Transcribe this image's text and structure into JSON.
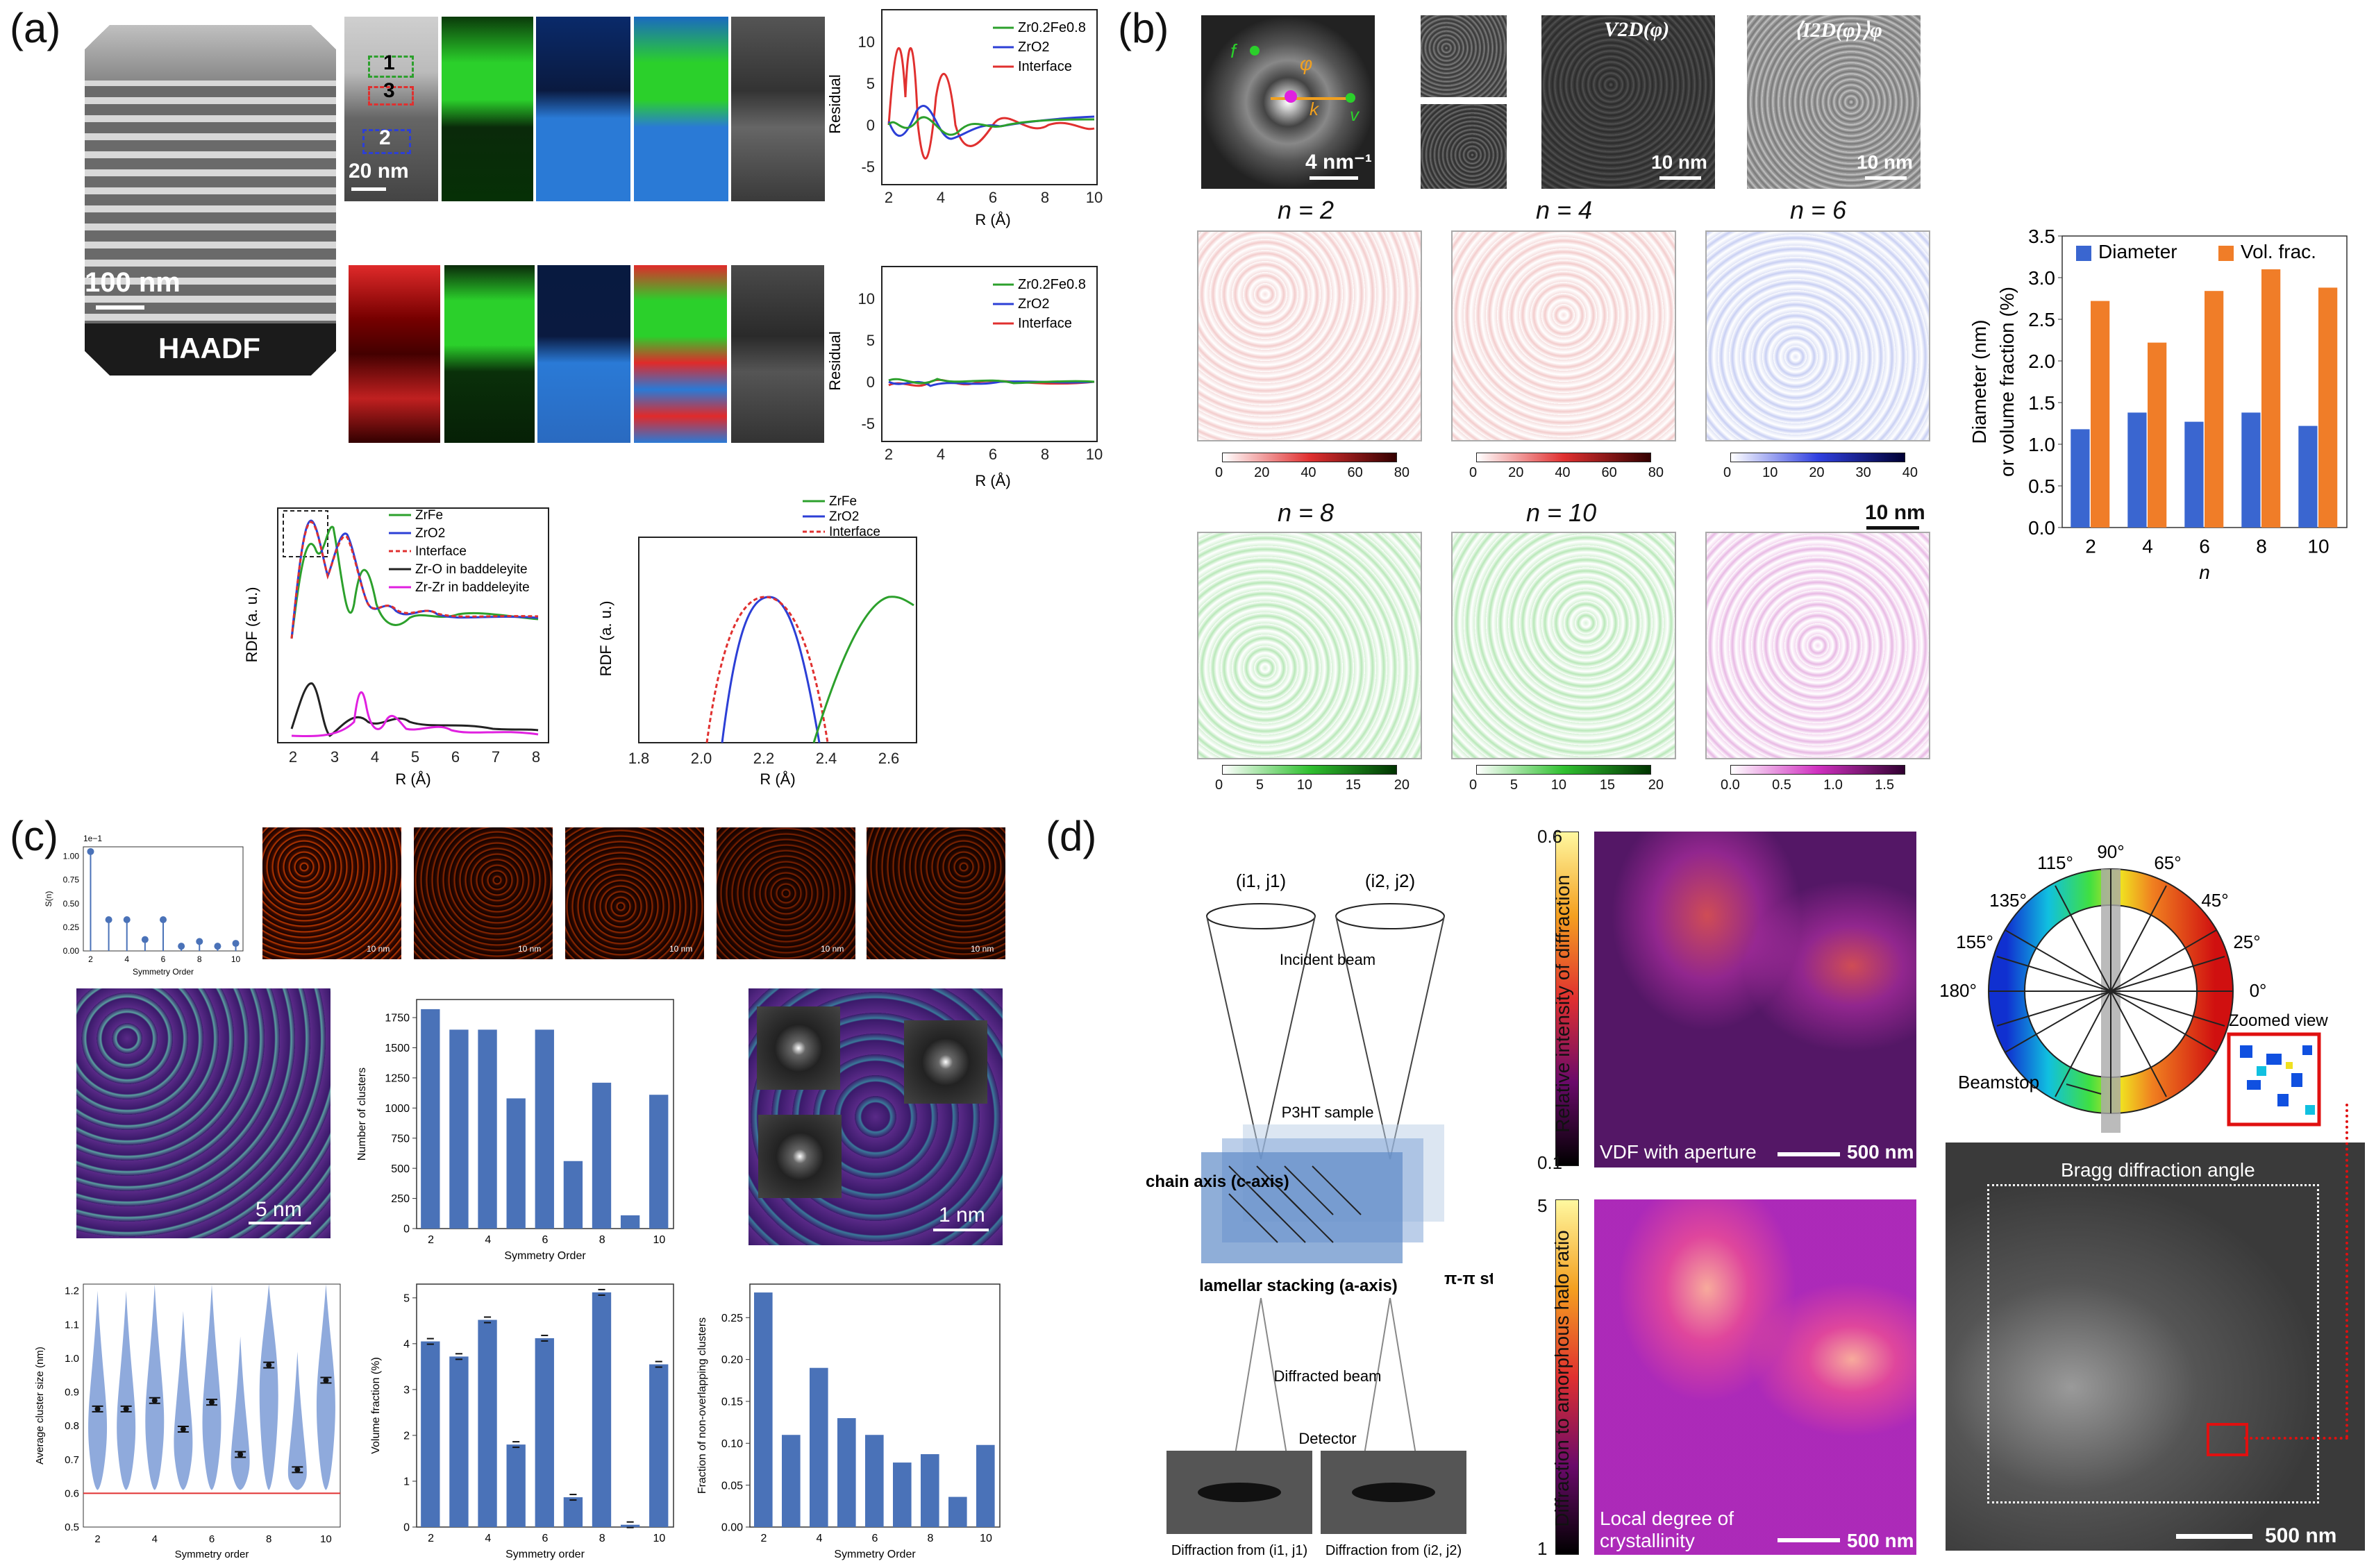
{
  "panels": {
    "a": "(a)",
    "b": "(b)",
    "c": "(c)",
    "d": "(d)"
  },
  "a": {
    "haadf_label": "HAADF",
    "scale_100nm": "100 nm",
    "scale_20nm": "20 nm",
    "region_labels": [
      "1",
      "3",
      "2"
    ],
    "colors": {
      "zrfe": "#2ca02c",
      "zro2": "#2c3fd6",
      "interface": "#e0302f",
      "black": "#222222",
      "magenta": "#e020e0"
    },
    "residual_top": {
      "legend": [
        "Zr0.2Fe0.8",
        "ZrO2",
        "Interface"
      ],
      "ylabel": "Residual",
      "xlabel": "R (Å)",
      "yticks": [
        "10",
        "5",
        "0",
        "-5"
      ],
      "xticks": [
        "2",
        "4",
        "6",
        "8",
        "10"
      ]
    },
    "residual_bottom": {
      "legend": [
        "Zr0.2Fe0.8",
        "ZrO2",
        "Interface"
      ],
      "ylabel": "Residual",
      "xlabel": "R (Å)",
      "yticks": [
        "10",
        "5",
        "0",
        "-5"
      ],
      "xticks": [
        "2",
        "4",
        "6",
        "8",
        "10"
      ]
    },
    "rdf_left": {
      "legend": [
        "ZrFe",
        "ZrO2",
        "Interface",
        "Zr-O in baddeleyite",
        "Zr-Zr in baddeleyite"
      ],
      "ylabel": "RDF (a. u.)",
      "xlabel": "R (Å)",
      "xticks": [
        "2",
        "3",
        "4",
        "5",
        "6",
        "7",
        "8"
      ]
    },
    "rdf_right": {
      "legend": [
        "ZrFe",
        "ZrO2",
        "Interface"
      ],
      "ylabel": "RDF (a. u.)",
      "xlabel": "R (Å)",
      "xticks": [
        "1.8",
        "2.0",
        "2.2",
        "2.4",
        "2.6"
      ]
    }
  },
  "b": {
    "fft_scale": "4 nm⁻¹",
    "labels_small": [
      "f",
      "φ",
      "k",
      "v"
    ],
    "v2d_label": "V2D(φ)",
    "i2d_label": "⟨I2D(φ)⟩φ",
    "scale_10nm": "10 nm",
    "map_titles": [
      "n = 2",
      "n = 4",
      "n = 6",
      "n = 8",
      "n = 10"
    ],
    "colorbar_ticks": [
      [
        "0",
        "20",
        "40",
        "60",
        "80"
      ],
      [
        "0",
        "20",
        "40",
        "60",
        "80"
      ],
      [
        "0",
        "10",
        "20",
        "30",
        "40"
      ],
      [
        "0",
        "5",
        "10",
        "15",
        "20"
      ],
      [
        "0",
        "5",
        "10",
        "15",
        "20"
      ],
      [
        "0.0",
        "0.5",
        "1.0",
        "1.5"
      ]
    ],
    "chart_data": {
      "type": "bar",
      "categories": [
        "2",
        "4",
        "6",
        "8",
        "10"
      ],
      "series": [
        {
          "name": "Diameter",
          "values": [
            1.18,
            1.38,
            1.27,
            1.38,
            1.22
          ],
          "color": "#3a66d0"
        },
        {
          "name": "Vol. frac.",
          "values": [
            2.72,
            2.22,
            2.84,
            3.1,
            2.88
          ],
          "color": "#f07d28"
        }
      ],
      "xlabel": "n",
      "ylabel": "Diameter (nm) or volume fraction (%)",
      "ylim": [
        0,
        3.5
      ],
      "yticks": [
        "0.0",
        "0.5",
        "1.0",
        "1.5",
        "2.0",
        "2.5",
        "3.0",
        "3.5"
      ],
      "legend_position": "top"
    }
  },
  "c": {
    "sym_chart": {
      "type": "stem",
      "x": [
        2,
        3,
        4,
        5,
        6,
        7,
        8,
        9,
        10
      ],
      "values": [
        1.05,
        0.33,
        0.33,
        0.12,
        0.33,
        0.05,
        0.1,
        0.05,
        0.08
      ],
      "multiplier": "1e−1",
      "xlabel": "Symmetry Order",
      "ylabel": "S(n)",
      "yticks": [
        "1.00",
        "0.75",
        "0.50",
        "0.25",
        "0.00"
      ],
      "xticks": [
        "2",
        "4",
        "6",
        "8",
        "10"
      ]
    },
    "scale_10nm": "10 nm",
    "scale_5nm": "5 nm",
    "scale_1nm": "1 nm",
    "clusters_chart": {
      "type": "bar",
      "categories": [
        "2",
        "3",
        "4",
        "5",
        "6",
        "7",
        "8",
        "9",
        "10"
      ],
      "values": [
        1820,
        1650,
        1650,
        1080,
        1650,
        560,
        1210,
        110,
        1110
      ],
      "xlabel": "Symmetry Order",
      "ylabel": "Number of clusters",
      "ylim": [
        0,
        1900
      ],
      "yticks": [
        "0",
        "250",
        "500",
        "750",
        "1000",
        "1250",
        "1500",
        "1750"
      ],
      "xticks": [
        "2",
        "4",
        "6",
        "8",
        "10"
      ]
    },
    "violin_chart": {
      "type": "violin",
      "categories": [
        "2",
        "3",
        "4",
        "5",
        "6",
        "7",
        "8",
        "9",
        "10"
      ],
      "means": [
        0.85,
        0.85,
        0.875,
        0.79,
        0.87,
        0.715,
        0.98,
        0.67,
        0.935
      ],
      "threshold": 0.6,
      "xlabel": "Symmetry order",
      "ylabel": "Average cluster size (nm)",
      "ylim": [
        0.5,
        1.22
      ],
      "yticks": [
        "0.5",
        "0.6",
        "0.7",
        "0.8",
        "0.9",
        "1.0",
        "1.1",
        "1.2"
      ],
      "xticks": [
        "2",
        "4",
        "6",
        "8",
        "10"
      ]
    },
    "volfrac_chart": {
      "type": "bar",
      "categories": [
        "2",
        "3",
        "4",
        "5",
        "6",
        "7",
        "8",
        "9",
        "10"
      ],
      "values": [
        4.05,
        3.72,
        4.52,
        1.8,
        4.12,
        0.65,
        5.12,
        0.05,
        3.55
      ],
      "xlabel": "Symmetry order",
      "ylabel": "Volume fraction (%)",
      "ylim": [
        0,
        5.3
      ],
      "yticks": [
        "0",
        "1",
        "2",
        "3",
        "4",
        "5"
      ],
      "xticks": [
        "2",
        "4",
        "6",
        "8",
        "10"
      ]
    },
    "nonoverlap_chart": {
      "type": "bar",
      "categories": [
        "2",
        "3",
        "4",
        "5",
        "6",
        "7",
        "8",
        "9",
        "10"
      ],
      "values": [
        0.28,
        0.11,
        0.19,
        0.13,
        0.11,
        0.077,
        0.087,
        0.036,
        0.098
      ],
      "xlabel": "Symmetry Order",
      "ylabel": "Fraction of non-overlapping clusters",
      "ylim": [
        0,
        0.29
      ],
      "yticks": [
        "0.00",
        "0.05",
        "0.10",
        "0.15",
        "0.20",
        "0.25"
      ],
      "xticks": [
        "2",
        "4",
        "6",
        "8",
        "10"
      ]
    }
  },
  "d": {
    "pos1": "(i1, j1)",
    "pos2": "(i2, j2)",
    "incident_beam": "Incident beam",
    "sample": "P3HT sample",
    "chain_axis": "chain axis (c-axis)",
    "lamellar": "lamellar stacking (a-axis)",
    "pipi": "π-π stacking (b-axis)",
    "diffracted_beam": "Diffracted beam",
    "detector": "Detector",
    "diff1": "Diffraction from (i1, j1)",
    "diff2": "Diffraction from (i2, j2)",
    "cbar1_label": "Relative intensity of diffraction",
    "cbar1_ticks": [
      "0.6",
      "0.1"
    ],
    "vdf_label": "VDF with aperture",
    "scale_500nm": "500 nm",
    "cbar2_label": "Diffraction to amorphous halo ratio",
    "cbar2_ticks": [
      "5",
      "1"
    ],
    "ldc_label": "Local degree of crystallinity",
    "angles": [
      "90°",
      "115°",
      "65°",
      "135°",
      "45°",
      "155°",
      "25°",
      "180°",
      "0°"
    ],
    "beamstop": "Beamstop",
    "zoomed": "Zoomed view",
    "bragg": "Bragg diffraction angle"
  }
}
